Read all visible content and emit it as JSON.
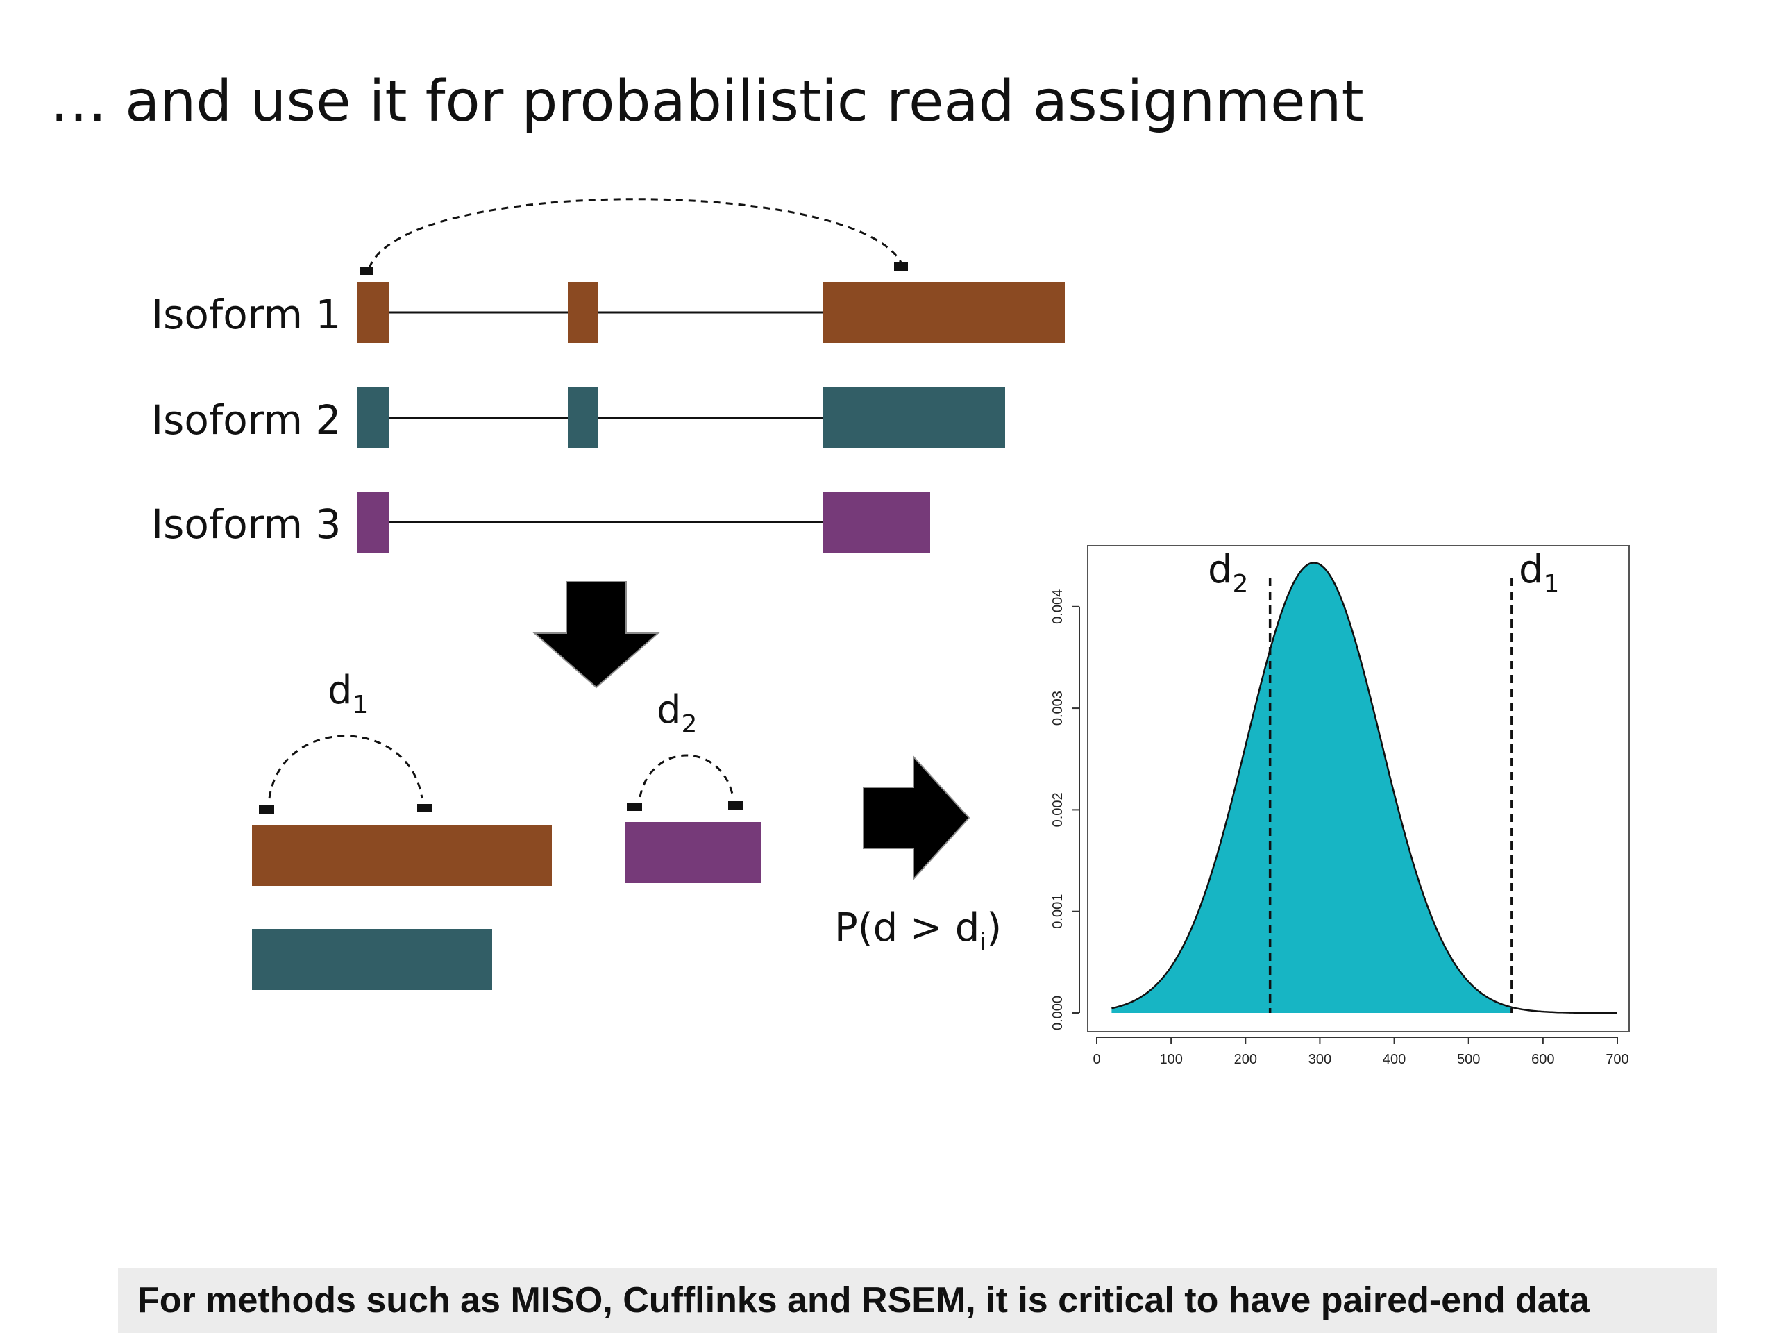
{
  "title": "… and use it for probabilistic read assignment",
  "isoforms": [
    {
      "label": "Isoform 1",
      "color": "#8b4a22"
    },
    {
      "label": "Isoform 2",
      "color": "#325e66"
    },
    {
      "label": "Isoform 3",
      "color": "#763a79"
    }
  ],
  "distance_labels": {
    "d": "d",
    "sub1": "1",
    "sub2": "2",
    "subi": "i",
    "prob_prefix": "P(d > d",
    "prob_suffix": ")"
  },
  "chart_data": {
    "type": "area",
    "distribution": "normal",
    "mean": 292,
    "sd": 90,
    "x_start": 20,
    "x_end": 700,
    "fill_to": 558,
    "x_ticks": [
      "0",
      "100",
      "200",
      "300",
      "400",
      "500",
      "600",
      "700"
    ],
    "y_ticks": [
      "0.000",
      "0.001",
      "0.002",
      "0.003",
      "0.004"
    ],
    "xlim": [
      0,
      700
    ],
    "ylim": [
      0,
      0.0046
    ],
    "vlines": [
      {
        "label": "d2",
        "x": 233
      },
      {
        "label": "d1",
        "x": 558
      }
    ],
    "fill_color": "#17b5c4"
  },
  "footer": "For methods such as MISO, Cufflinks and RSEM, it is critical to have paired-end data"
}
